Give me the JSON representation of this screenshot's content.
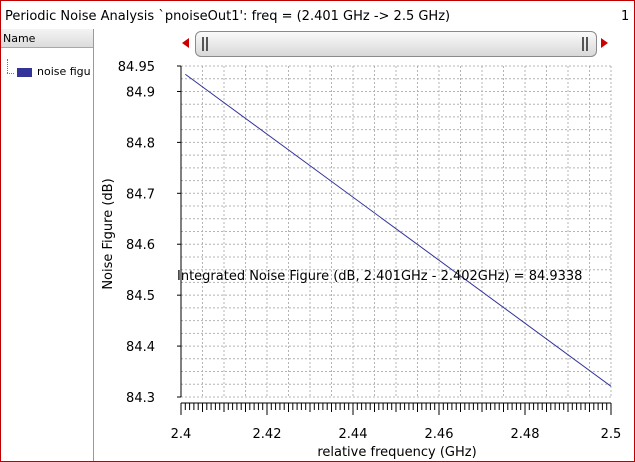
{
  "window": {
    "title": "Periodic Noise Analysis `pnoiseOut1': freq = (2.401 GHz -> 2.5 GHz)",
    "page_number": "1",
    "border_color": "#c00000"
  },
  "sidebar": {
    "header": "Name",
    "items": [
      {
        "label": "noise figu",
        "swatch_color": "#33339a",
        "icon": "legend-swatch-icon"
      }
    ]
  },
  "scrollbar": {
    "left_arrow_icon": "arrow-left-icon",
    "right_arrow_icon": "arrow-right-icon",
    "arrow_color": "#cc0000"
  },
  "chart_data": {
    "type": "line",
    "title": "",
    "xlabel": "relative frequency (GHz)",
    "ylabel": "Noise Figure (dB)",
    "xlim": [
      2.4,
      2.5
    ],
    "ylim": [
      84.3,
      84.95
    ],
    "x_ticks": [
      "2.4",
      "2.42",
      "2.44",
      "2.46",
      "2.48",
      "2.5"
    ],
    "y_ticks": [
      "84.3",
      "84.4",
      "84.5",
      "84.6",
      "84.7",
      "84.8",
      "84.9",
      "84.95"
    ],
    "grid": true,
    "series": [
      {
        "color": "#33339a",
        "x": [
          2.401,
          2.5
        ],
        "y": [
          84.9338,
          84.321
        ]
      }
    ],
    "annotations": [
      {
        "text": "Integrated Noise Figure (dB, 2.401GHz - 2.402GHz) = 84.9338"
      }
    ]
  }
}
